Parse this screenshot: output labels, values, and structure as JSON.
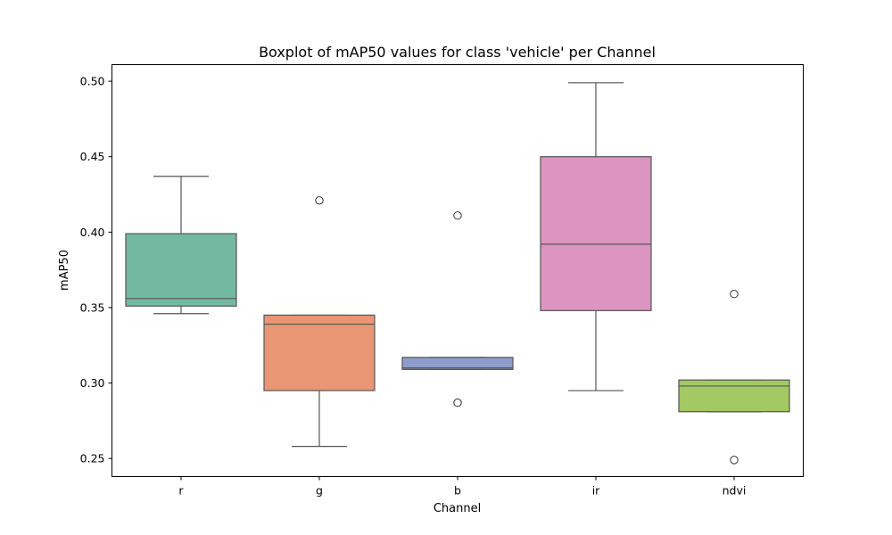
{
  "chart_data": {
    "type": "boxplot",
    "title": "Boxplot of mAP50 values for class 'vehicle' per Channel",
    "xlabel": "Channel",
    "ylabel": "mAP50",
    "ylim": [
      0.238,
      0.511
    ],
    "yticks": [
      0.25,
      0.3,
      0.35,
      0.4,
      0.45,
      0.5
    ],
    "ytick_labels": [
      "0.25",
      "0.30",
      "0.35",
      "0.40",
      "0.45",
      "0.50"
    ],
    "grid": false,
    "categories": [
      "r",
      "g",
      "b",
      "ir",
      "ndvi"
    ],
    "boxes": [
      {
        "category": "r",
        "color": "#73b8a1",
        "whisker_low": 0.346,
        "q1": 0.351,
        "median": 0.356,
        "q3": 0.399,
        "whisker_high": 0.437,
        "outliers": []
      },
      {
        "category": "g",
        "color": "#e89673",
        "whisker_low": 0.258,
        "q1": 0.295,
        "median": 0.339,
        "q3": 0.345,
        "whisker_high": 0.345,
        "outliers": [
          0.421
        ]
      },
      {
        "category": "b",
        "color": "#8e9dcb",
        "whisker_low": 0.309,
        "q1": 0.309,
        "median": 0.31,
        "q3": 0.317,
        "whisker_high": 0.317,
        "outliers": [
          0.287,
          0.411
        ]
      },
      {
        "category": "ir",
        "color": "#db95c0",
        "whisker_low": 0.295,
        "q1": 0.348,
        "median": 0.392,
        "q3": 0.45,
        "whisker_high": 0.499,
        "outliers": []
      },
      {
        "category": "ndvi",
        "color": "#a3c963",
        "whisker_low": 0.281,
        "q1": 0.281,
        "median": 0.298,
        "q3": 0.302,
        "whisker_high": 0.302,
        "outliers": [
          0.249,
          0.359
        ]
      }
    ]
  }
}
